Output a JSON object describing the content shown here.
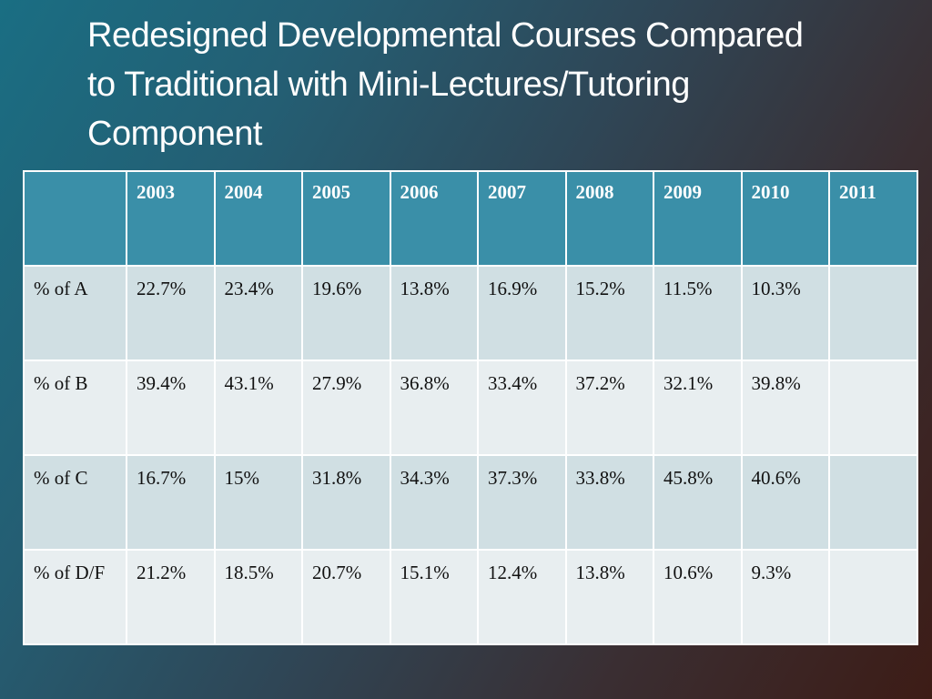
{
  "slide": {
    "title_lines": [
      "Redesigned Developmental Courses Compared",
      "to Traditional with Mini-Lectures/Tutoring",
      "Component"
    ]
  },
  "table": {
    "corner": "",
    "headers": [
      "2003",
      "2004",
      "2005",
      "2006",
      "2007",
      "2008",
      "2009",
      "2010",
      "2011"
    ],
    "rows": [
      {
        "label": "% of A",
        "values": [
          "22.7%",
          "23.4%",
          "19.6%",
          "13.8%",
          "16.9%",
          "15.2%",
          "11.5%",
          "10.3%",
          ""
        ]
      },
      {
        "label": "% of B",
        "values": [
          "39.4%",
          "43.1%",
          "27.9%",
          "36.8%",
          "33.4%",
          "37.2%",
          "32.1%",
          "39.8%",
          ""
        ]
      },
      {
        "label": "% of C",
        "values": [
          "16.7%",
          "15%",
          "31.8%",
          "34.3%",
          "37.3%",
          "33.8%",
          "45.8%",
          "40.6%",
          ""
        ]
      },
      {
        "label": "% of D/F",
        "values": [
          "21.2%",
          "18.5%",
          "20.7%",
          "15.1%",
          "12.4%",
          "13.8%",
          "10.6%",
          "9.3%",
          ""
        ]
      }
    ]
  },
  "colors": {
    "header_fill": "#3a8fa8",
    "row_fill_odd": "#d0dfe3",
    "row_fill_even": "#e8eef0",
    "title_text": "#ffffff"
  }
}
